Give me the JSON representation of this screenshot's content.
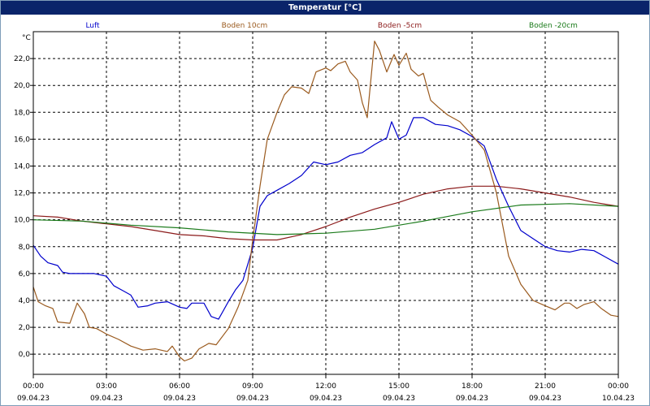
{
  "window": {
    "title": "Temperatur [°C]"
  },
  "chart_data": {
    "type": "line",
    "title": "Temperatur [°C]",
    "ylabel": "°C",
    "ylim": [
      -1.5,
      24.0
    ],
    "grid": true,
    "legend": "top",
    "x_ticks": [
      {
        "time": "00:00",
        "date": "09.04.23",
        "h": 0
      },
      {
        "time": "03:00",
        "date": "09.04.23",
        "h": 3
      },
      {
        "time": "06:00",
        "date": "09.04.23",
        "h": 6
      },
      {
        "time": "09:00",
        "date": "09.04.23",
        "h": 9
      },
      {
        "time": "12:00",
        "date": "09.04.23",
        "h": 12
      },
      {
        "time": "15:00",
        "date": "09.04.23",
        "h": 15
      },
      {
        "time": "18:00",
        "date": "09.04.23",
        "h": 18
      },
      {
        "time": "21:00",
        "date": "09.04.23",
        "h": 21
      },
      {
        "time": "00:00",
        "date": "10.04.23",
        "h": 24
      }
    ],
    "y_ticks": [
      {
        "label": "0,0",
        "v": 0
      },
      {
        "label": "2,0",
        "v": 2
      },
      {
        "label": "4,0",
        "v": 4
      },
      {
        "label": "6,0",
        "v": 6
      },
      {
        "label": "8,0",
        "v": 8
      },
      {
        "label": "10,0",
        "v": 10
      },
      {
        "label": "12,0",
        "v": 12
      },
      {
        "label": "14,0",
        "v": 14
      },
      {
        "label": "16,0",
        "v": 16
      },
      {
        "label": "18,0",
        "v": 18
      },
      {
        "label": "20,0",
        "v": 20
      },
      {
        "label": "22,0",
        "v": 22
      }
    ],
    "series": [
      {
        "name": "Luft",
        "color": "#0000cc",
        "points": [
          [
            0.0,
            8.1
          ],
          [
            0.3,
            7.3
          ],
          [
            0.6,
            6.8
          ],
          [
            1.0,
            6.6
          ],
          [
            1.2,
            6.1
          ],
          [
            1.5,
            6.0
          ],
          [
            2.0,
            6.0
          ],
          [
            2.5,
            6.0
          ],
          [
            3.0,
            5.8
          ],
          [
            3.3,
            5.1
          ],
          [
            3.7,
            4.7
          ],
          [
            4.0,
            4.4
          ],
          [
            4.3,
            3.5
          ],
          [
            4.7,
            3.6
          ],
          [
            5.0,
            3.8
          ],
          [
            5.5,
            3.9
          ],
          [
            6.0,
            3.5
          ],
          [
            6.3,
            3.4
          ],
          [
            6.5,
            3.8
          ],
          [
            7.0,
            3.8
          ],
          [
            7.3,
            2.8
          ],
          [
            7.6,
            2.6
          ],
          [
            8.0,
            3.9
          ],
          [
            8.3,
            4.8
          ],
          [
            8.6,
            5.5
          ],
          [
            9.0,
            7.9
          ],
          [
            9.3,
            11.0
          ],
          [
            9.6,
            11.8
          ],
          [
            10.0,
            12.2
          ],
          [
            10.5,
            12.7
          ],
          [
            11.0,
            13.3
          ],
          [
            11.5,
            14.3
          ],
          [
            12.0,
            14.1
          ],
          [
            12.5,
            14.3
          ],
          [
            13.0,
            14.8
          ],
          [
            13.5,
            15.0
          ],
          [
            14.0,
            15.6
          ],
          [
            14.5,
            16.1
          ],
          [
            14.7,
            17.3
          ],
          [
            15.0,
            16.0
          ],
          [
            15.3,
            16.3
          ],
          [
            15.6,
            17.6
          ],
          [
            16.0,
            17.6
          ],
          [
            16.5,
            17.1
          ],
          [
            17.0,
            17.0
          ],
          [
            17.5,
            16.7
          ],
          [
            18.0,
            16.2
          ],
          [
            18.5,
            15.5
          ],
          [
            19.0,
            13.0
          ],
          [
            19.5,
            11.0
          ],
          [
            20.0,
            9.2
          ],
          [
            20.5,
            8.6
          ],
          [
            21.0,
            8.0
          ],
          [
            21.5,
            7.7
          ],
          [
            22.0,
            7.6
          ],
          [
            22.5,
            7.8
          ],
          [
            23.0,
            7.7
          ],
          [
            23.5,
            7.2
          ],
          [
            24.0,
            6.7
          ]
        ]
      },
      {
        "name": "Boden 10cm",
        "color": "#9a5a1e",
        "points": [
          [
            0.0,
            5.0
          ],
          [
            0.2,
            3.9
          ],
          [
            0.5,
            3.6
          ],
          [
            0.8,
            3.4
          ],
          [
            1.0,
            2.4
          ],
          [
            1.5,
            2.3
          ],
          [
            1.8,
            3.8
          ],
          [
            2.1,
            3.0
          ],
          [
            2.3,
            2.0
          ],
          [
            2.6,
            1.9
          ],
          [
            3.0,
            1.5
          ],
          [
            3.5,
            1.1
          ],
          [
            4.0,
            0.6
          ],
          [
            4.5,
            0.3
          ],
          [
            5.0,
            0.4
          ],
          [
            5.5,
            0.2
          ],
          [
            5.7,
            0.6
          ],
          [
            6.0,
            -0.2
          ],
          [
            6.2,
            -0.5
          ],
          [
            6.5,
            -0.3
          ],
          [
            6.8,
            0.4
          ],
          [
            7.2,
            0.8
          ],
          [
            7.5,
            0.7
          ],
          [
            8.0,
            1.9
          ],
          [
            8.4,
            3.5
          ],
          [
            8.8,
            5.5
          ],
          [
            9.0,
            8.5
          ],
          [
            9.3,
            12.5
          ],
          [
            9.6,
            16.0
          ],
          [
            10.0,
            18.0
          ],
          [
            10.3,
            19.3
          ],
          [
            10.6,
            19.9
          ],
          [
            11.0,
            19.8
          ],
          [
            11.3,
            19.4
          ],
          [
            11.6,
            21.0
          ],
          [
            12.0,
            21.3
          ],
          [
            12.2,
            21.1
          ],
          [
            12.5,
            21.6
          ],
          [
            12.8,
            21.8
          ],
          [
            13.0,
            21.0
          ],
          [
            13.3,
            20.4
          ],
          [
            13.5,
            18.7
          ],
          [
            13.7,
            17.6
          ],
          [
            14.0,
            23.3
          ],
          [
            14.2,
            22.6
          ],
          [
            14.5,
            21.0
          ],
          [
            14.8,
            22.3
          ],
          [
            15.0,
            21.5
          ],
          [
            15.3,
            22.4
          ],
          [
            15.5,
            21.2
          ],
          [
            15.8,
            20.7
          ],
          [
            16.0,
            20.9
          ],
          [
            16.3,
            18.9
          ],
          [
            16.6,
            18.4
          ],
          [
            17.0,
            17.8
          ],
          [
            17.5,
            17.3
          ],
          [
            18.0,
            16.3
          ],
          [
            18.5,
            15.2
          ],
          [
            19.0,
            12.0
          ],
          [
            19.5,
            7.3
          ],
          [
            20.0,
            5.2
          ],
          [
            20.5,
            4.0
          ],
          [
            21.0,
            3.6
          ],
          [
            21.4,
            3.3
          ],
          [
            21.8,
            3.8
          ],
          [
            22.0,
            3.8
          ],
          [
            22.3,
            3.4
          ],
          [
            22.6,
            3.7
          ],
          [
            23.0,
            3.9
          ],
          [
            23.3,
            3.4
          ],
          [
            23.7,
            2.9
          ],
          [
            24.0,
            2.8
          ]
        ]
      },
      {
        "name": "Boden -5cm",
        "color": "#8b1a1a",
        "points": [
          [
            0.0,
            10.3
          ],
          [
            1.0,
            10.2
          ],
          [
            2.0,
            9.9
          ],
          [
            3.0,
            9.7
          ],
          [
            4.0,
            9.5
          ],
          [
            5.0,
            9.2
          ],
          [
            6.0,
            8.9
          ],
          [
            7.0,
            8.8
          ],
          [
            8.0,
            8.6
          ],
          [
            9.0,
            8.5
          ],
          [
            10.0,
            8.5
          ],
          [
            11.0,
            8.9
          ],
          [
            12.0,
            9.5
          ],
          [
            13.0,
            10.2
          ],
          [
            14.0,
            10.8
          ],
          [
            15.0,
            11.3
          ],
          [
            16.0,
            11.9
          ],
          [
            17.0,
            12.3
          ],
          [
            18.0,
            12.5
          ],
          [
            19.0,
            12.5
          ],
          [
            20.0,
            12.3
          ],
          [
            21.0,
            12.0
          ],
          [
            22.0,
            11.7
          ],
          [
            23.0,
            11.3
          ],
          [
            24.0,
            11.0
          ]
        ]
      },
      {
        "name": "Boden -20cm",
        "color": "#1a7a1a",
        "points": [
          [
            0.0,
            10.0
          ],
          [
            2.0,
            9.9
          ],
          [
            4.0,
            9.6
          ],
          [
            6.0,
            9.4
          ],
          [
            8.0,
            9.1
          ],
          [
            10.0,
            8.9
          ],
          [
            12.0,
            9.0
          ],
          [
            14.0,
            9.3
          ],
          [
            16.0,
            9.9
          ],
          [
            18.0,
            10.6
          ],
          [
            20.0,
            11.1
          ],
          [
            22.0,
            11.2
          ],
          [
            24.0,
            11.0
          ]
        ]
      }
    ]
  }
}
